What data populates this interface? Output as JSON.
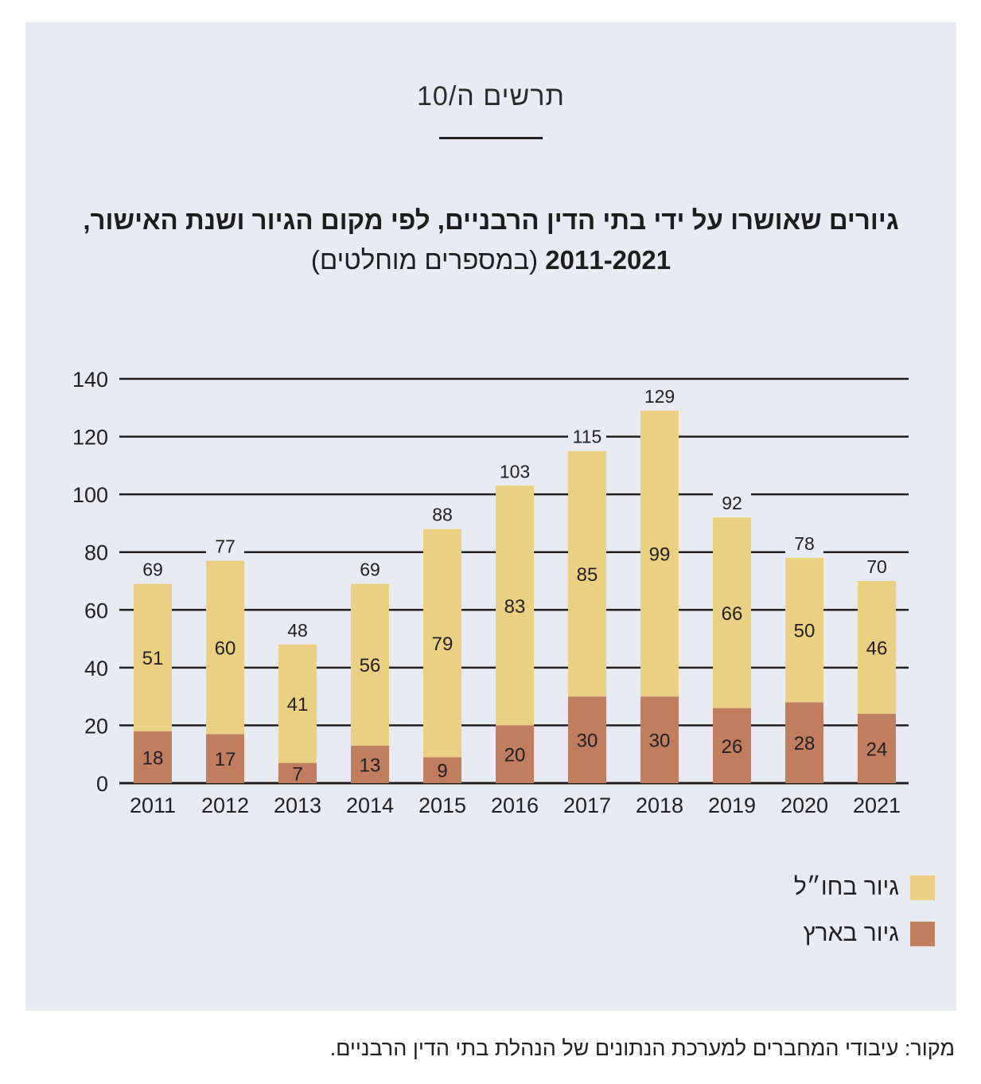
{
  "figure_label": "תרשים ה/10",
  "title_bold": "גיורים שאושרו על ידי בתי הדין הרבניים, לפי מקום הגיור ושנת האישור, 2011-2021",
  "title_normal": "(במספרים מוחלטים)",
  "legend": {
    "abroad": "גיור בחו״ל",
    "israel": "גיור בארץ"
  },
  "source": "מקור: עיבודי המחברים למערכת הנתונים של הנהלת בתי הדין הרבניים.",
  "colors": {
    "abroad": "#ead083",
    "israel": "#c07d5f",
    "background": "#e8ebf1",
    "grid": "#231f20"
  },
  "chart_data": {
    "type": "bar",
    "stacked": true,
    "categories": [
      "2011",
      "2012",
      "2013",
      "2014",
      "2015",
      "2016",
      "2017",
      "2018",
      "2019",
      "2020",
      "2021"
    ],
    "series": [
      {
        "name": "גיור בארץ",
        "values": [
          18,
          17,
          7,
          13,
          9,
          20,
          30,
          30,
          26,
          28,
          24
        ]
      },
      {
        "name": "גיור בחו״ל",
        "values": [
          51,
          60,
          41,
          56,
          79,
          83,
          85,
          99,
          66,
          50,
          46
        ]
      }
    ],
    "totals": [
      69,
      77,
      48,
      69,
      88,
      103,
      115,
      129,
      92,
      78,
      70
    ],
    "ylim": [
      0,
      140
    ],
    "yticks": [
      0,
      20,
      40,
      60,
      80,
      100,
      120,
      140
    ],
    "grid": true,
    "legend_position": "bottom-right"
  }
}
